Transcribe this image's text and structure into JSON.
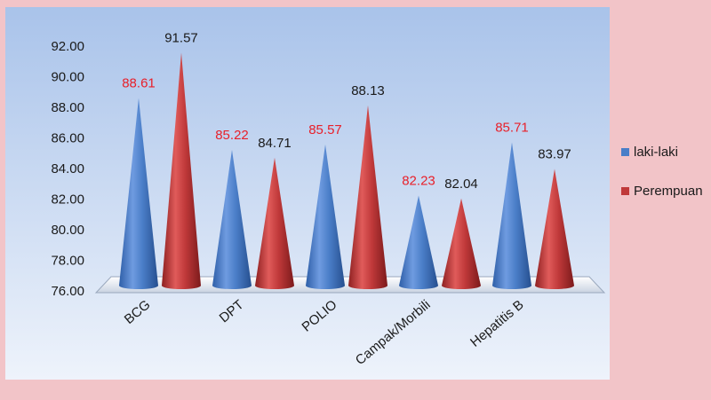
{
  "chart_data": {
    "type": "bar",
    "title": "",
    "xlabel": "",
    "ylabel": "",
    "ylim": [
      76,
      92
    ],
    "yticks": [
      "76.00",
      "78.00",
      "80.00",
      "82.00",
      "84.00",
      "86.00",
      "88.00",
      "90.00",
      "92.00"
    ],
    "categories": [
      "BCG",
      "DPT",
      "POLIO",
      "Campak/Morbili",
      "Hepatitis B"
    ],
    "series": [
      {
        "name": "laki-laki",
        "values": [
          88.61,
          85.22,
          85.57,
          82.23,
          85.71
        ],
        "labels": [
          "88.61",
          "85.22",
          "85.57",
          "82.23",
          "85.71"
        ],
        "color": "#4a7ec8",
        "label_color": "#e8202a"
      },
      {
        "name": "Perempuan",
        "values": [
          91.57,
          84.71,
          88.13,
          82.04,
          83.97
        ],
        "labels": [
          "91.57",
          "84.71",
          "88.13",
          "82.04",
          "83.97"
        ],
        "color": "#c0393a",
        "label_color": "#1a1a1a"
      }
    ],
    "legend_position": "right",
    "grid": false,
    "mark_shape": "cone"
  },
  "colors": {
    "frame": "#f2c4c8",
    "plot_top": "#a9c3ea",
    "plot_bottom": "#eef3fb"
  }
}
